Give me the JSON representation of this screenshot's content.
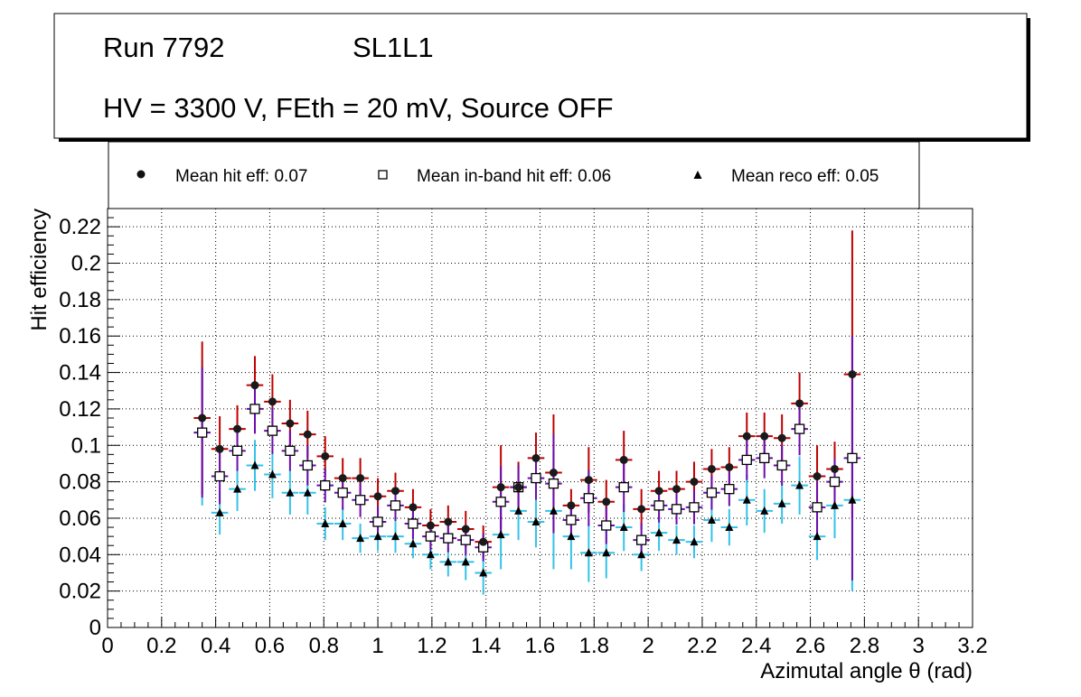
{
  "info_box": {
    "run": "Run 7792",
    "layer": "SL1L1",
    "conditions": "HV = 3300 V, FEth = 20 mV, Source OFF"
  },
  "legend": {
    "hit": "Mean hit  eff: 0.07",
    "inband": "Mean in-band hit eff: 0.06",
    "reco": "Mean reco eff: 0.05"
  },
  "colors": {
    "hit_err": "#c00000",
    "inband_err": "#6a0dad",
    "reco_err": "#33c3e8",
    "grid": "#000000"
  },
  "chart_data": {
    "type": "scatter",
    "title": "",
    "xlabel": "Azimutal angle θ (rad)",
    "ylabel": "Hit efficiency",
    "xlim": [
      0,
      3.2
    ],
    "ylim": [
      0,
      0.23
    ],
    "x_ticks": [
      "0",
      "0.2",
      "0.4",
      "0.6",
      "0.8",
      "1",
      "1.2",
      "1.4",
      "1.6",
      "1.8",
      "2",
      "2.2",
      "2.4",
      "2.6",
      "2.8",
      "3",
      "3.2"
    ],
    "y_ticks": [
      "0",
      "0.02",
      "0.04",
      "0.06",
      "0.08",
      "0.1",
      "0.12",
      "0.14",
      "0.16",
      "0.18",
      "0.2",
      "0.22"
    ],
    "x_tick_values": [
      0,
      0.2,
      0.4,
      0.6,
      0.8,
      1.0,
      1.2,
      1.4,
      1.6,
      1.8,
      2.0,
      2.2,
      2.4,
      2.6,
      2.8,
      3.0,
      3.2
    ],
    "y_tick_values": [
      0,
      0.02,
      0.04,
      0.06,
      0.08,
      0.1,
      0.12,
      0.14,
      0.16,
      0.18,
      0.2,
      0.22
    ],
    "grid": true,
    "bin_half_width": 0.031,
    "x": [
      0.35,
      0.415,
      0.48,
      0.545,
      0.61,
      0.675,
      0.74,
      0.805,
      0.87,
      0.935,
      1.0,
      1.065,
      1.13,
      1.195,
      1.26,
      1.325,
      1.39,
      1.455,
      1.52,
      1.585,
      1.65,
      1.715,
      1.78,
      1.845,
      1.91,
      1.975,
      2.04,
      2.105,
      2.17,
      2.235,
      2.3,
      2.365,
      2.43,
      2.495,
      2.56,
      2.625,
      2.69,
      2.755
    ],
    "series": [
      {
        "name": "Mean hit  eff: 0.07",
        "marker": "filled-circle",
        "values": [
          0.115,
          0.098,
          0.109,
          0.133,
          0.124,
          0.112,
          0.106,
          0.094,
          0.082,
          0.082,
          0.072,
          0.075,
          0.066,
          0.056,
          0.058,
          0.054,
          0.047,
          0.077,
          0.077,
          0.093,
          0.085,
          0.067,
          0.081,
          0.069,
          0.092,
          0.065,
          0.075,
          0.076,
          0.08,
          0.087,
          0.088,
          0.105,
          0.105,
          0.104,
          0.123,
          0.083,
          0.087,
          0.139
        ],
        "err": [
          0.042,
          0.018,
          0.013,
          0.016,
          0.015,
          0.013,
          0.013,
          0.011,
          0.011,
          0.011,
          0.01,
          0.01,
          0.01,
          0.009,
          0.009,
          0.01,
          0.009,
          0.023,
          0.014,
          0.014,
          0.032,
          0.009,
          0.018,
          0.012,
          0.016,
          0.011,
          0.011,
          0.01,
          0.011,
          0.011,
          0.011,
          0.013,
          0.013,
          0.013,
          0.017,
          0.017,
          0.015,
          0.079
        ]
      },
      {
        "name": "Mean in-band hit eff: 0.06",
        "marker": "open-square",
        "values": [
          0.107,
          0.083,
          0.097,
          0.12,
          0.108,
          0.097,
          0.089,
          0.078,
          0.074,
          0.07,
          0.058,
          0.067,
          0.057,
          0.05,
          0.049,
          0.048,
          0.044,
          0.069,
          0.077,
          0.082,
          0.079,
          0.059,
          0.071,
          0.056,
          0.077,
          0.048,
          0.067,
          0.065,
          0.066,
          0.074,
          0.076,
          0.092,
          0.093,
          0.089,
          0.109,
          0.066,
          0.08,
          0.093
        ]
      },
      {
        "name": "Mean reco eff: 0.05",
        "marker": "filled-triangle",
        "values": [
          0.107,
          0.063,
          0.076,
          0.089,
          0.084,
          0.074,
          0.074,
          0.057,
          0.057,
          0.049,
          0.05,
          0.05,
          0.046,
          0.04,
          0.036,
          0.036,
          0.03,
          0.051,
          0.064,
          0.058,
          0.064,
          0.05,
          0.041,
          0.041,
          0.055,
          0.04,
          0.052,
          0.048,
          0.047,
          0.059,
          0.055,
          0.07,
          0.064,
          0.068,
          0.078,
          0.05,
          0.067,
          0.07
        ],
        "err": [
          0.04,
          0.012,
          0.012,
          0.014,
          0.013,
          0.012,
          0.012,
          0.009,
          0.009,
          0.008,
          0.008,
          0.009,
          0.008,
          0.008,
          0.008,
          0.01,
          0.012,
          0.019,
          0.016,
          0.014,
          0.032,
          0.018,
          0.016,
          0.014,
          0.013,
          0.009,
          0.01,
          0.008,
          0.009,
          0.012,
          0.01,
          0.014,
          0.012,
          0.011,
          0.016,
          0.013,
          0.018,
          0.05
        ]
      }
    ]
  }
}
